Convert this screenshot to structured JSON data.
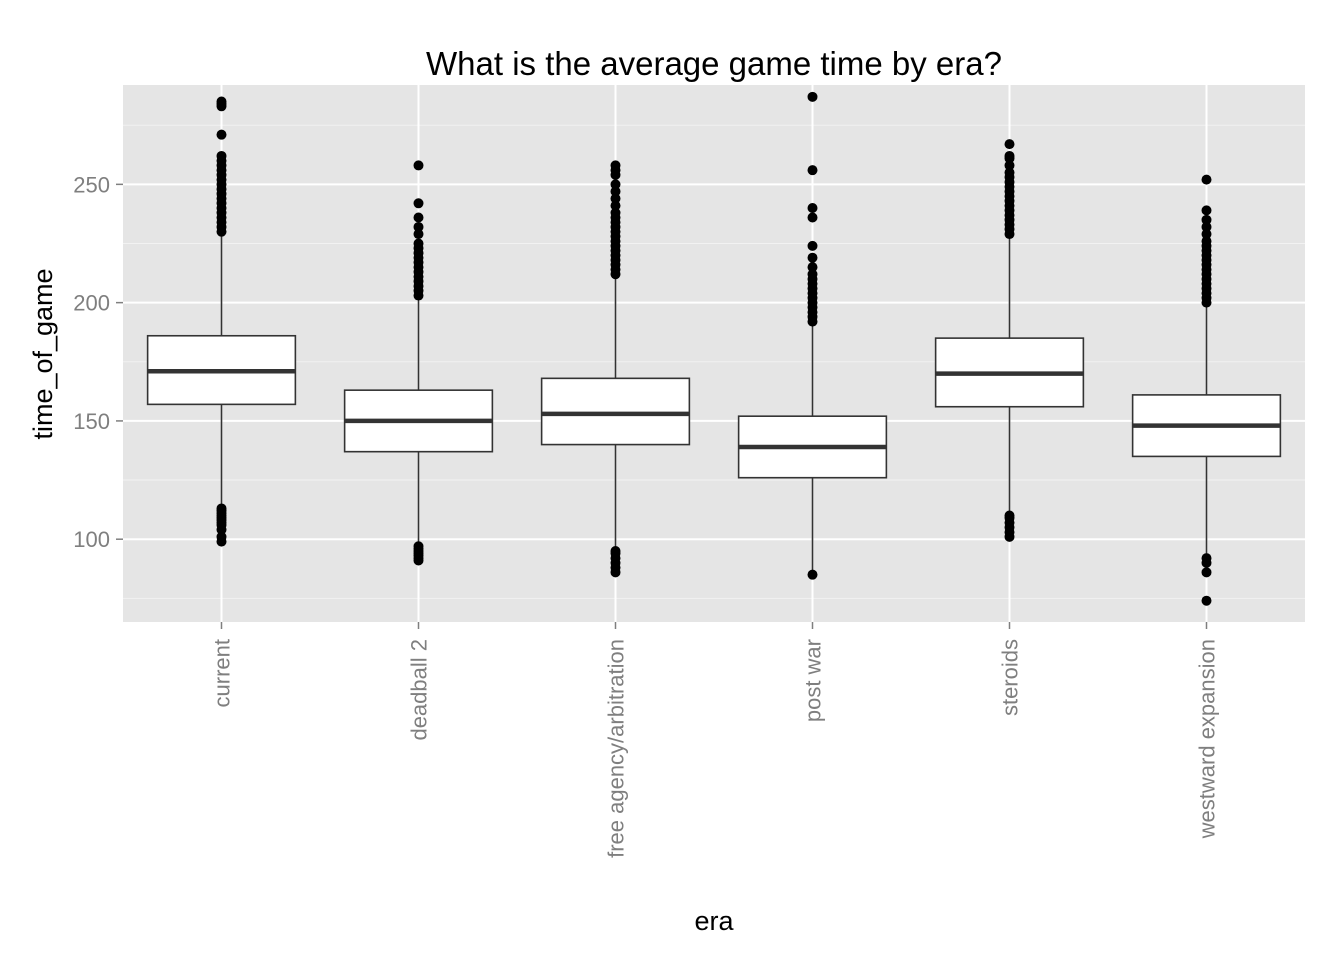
{
  "chart_data": {
    "type": "boxplot",
    "title": "What is the average game time by era?",
    "xlabel": "era",
    "ylabel": "time_of_game",
    "ylim": [
      65,
      292
    ],
    "yticks": [
      100,
      150,
      200,
      250
    ],
    "grid": true,
    "legend": "none",
    "colors": {
      "panel": "#e5e5e5",
      "grid": "#ffffff",
      "box_fill": "#ffffff",
      "box_line": "#333333",
      "point": "#000000",
      "tick_text": "#7f7f7f"
    },
    "categories": [
      "current",
      "deadball 2",
      "free agency/arbitration",
      "post war",
      "steroids",
      "westward expansion"
    ],
    "boxes": [
      {
        "q1": 157,
        "median": 171,
        "q3": 186,
        "whisker_low": 114,
        "whisker_high": 229,
        "outliers": [
          99,
          101,
          104,
          106,
          107,
          108,
          109,
          110,
          111,
          112,
          113,
          230,
          232,
          234,
          236,
          238,
          240,
          242,
          244,
          246,
          248,
          250,
          252,
          254,
          256,
          258,
          260,
          262,
          271,
          283,
          284,
          285
        ]
      },
      {
        "q1": 137,
        "median": 150,
        "q3": 163,
        "whisker_low": 98,
        "whisker_high": 202,
        "outliers": [
          91,
          92,
          93,
          94,
          95,
          96,
          97,
          203,
          205,
          207,
          209,
          211,
          213,
          215,
          217,
          219,
          221,
          223,
          225,
          229,
          232,
          236,
          242,
          258
        ]
      },
      {
        "q1": 140,
        "median": 153,
        "q3": 168,
        "whisker_low": 96,
        "whisker_high": 211,
        "outliers": [
          86,
          88,
          90,
          92,
          94,
          95,
          212,
          214,
          216,
          218,
          220,
          222,
          224,
          226,
          228,
          230,
          232,
          234,
          236,
          238,
          241,
          244,
          247,
          250,
          254,
          256,
          258
        ]
      },
      {
        "q1": 126,
        "median": 139,
        "q3": 152,
        "whisker_low": 86,
        "whisker_high": 191,
        "outliers": [
          85,
          192,
          194,
          196,
          198,
          200,
          202,
          204,
          206,
          208,
          210,
          212,
          215,
          219,
          224,
          236,
          240,
          256,
          287
        ]
      },
      {
        "q1": 156,
        "median": 170,
        "q3": 185,
        "whisker_low": 111,
        "whisker_high": 228,
        "outliers": [
          101,
          103,
          105,
          107,
          109,
          110,
          229,
          231,
          233,
          235,
          237,
          239,
          241,
          243,
          245,
          247,
          249,
          251,
          253,
          255,
          258,
          261,
          262,
          267
        ]
      },
      {
        "q1": 135,
        "median": 148,
        "q3": 161,
        "whisker_low": 94,
        "whisker_high": 199,
        "outliers": [
          74,
          86,
          90,
          92,
          200,
          202,
          204,
          206,
          208,
          210,
          212,
          214,
          216,
          218,
          220,
          222,
          224,
          226,
          229,
          232,
          235,
          239,
          252
        ]
      }
    ]
  }
}
